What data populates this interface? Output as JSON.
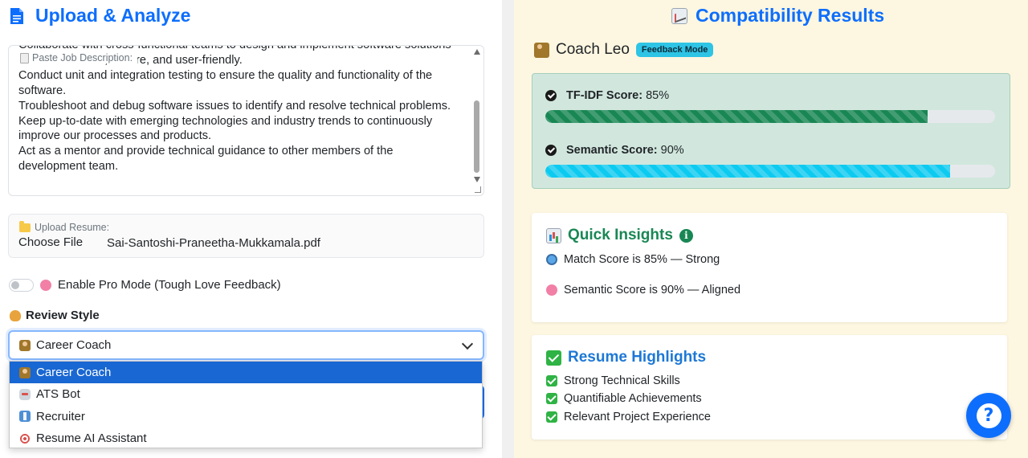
{
  "left_panel": {
    "title": "Upload & Analyze",
    "job_description": {
      "label": "Paste Job Description:",
      "text": "Collaborate with cross-functional teams to design and implement software solutions that are scalable, secure, and user-friendly.\n Conduct unit and integration testing to ensure the quality and functionality of the software.\n Troubleshoot and debug software issues to identify and resolve technical problems.\n Keep up-to-date with emerging technologies and industry trends to continuously improve our processes and products.\n Act as a mentor and provide technical guidance to other members of the development team."
    },
    "resume_upload": {
      "label": "Upload Resume:",
      "button_label": "Choose File",
      "file_name": "Sai-Santoshi-Praneetha-Mukkamala.pdf"
    },
    "pro_mode": {
      "label": "Enable Pro Mode (Tough Love Feedback)",
      "enabled": false
    },
    "review_style": {
      "label": "Review Style",
      "selected": "Career Coach",
      "options": [
        {
          "label": "Career Coach",
          "icon": "coach-icon",
          "selected": true
        },
        {
          "label": "ATS Bot",
          "icon": "robot-icon",
          "selected": false
        },
        {
          "label": "Recruiter",
          "icon": "recruiter-icon",
          "selected": false
        },
        {
          "label": "Resume AI Assistant",
          "icon": "target-icon",
          "selected": false
        }
      ]
    }
  },
  "right_panel": {
    "title": "Compatibility Results",
    "coach": {
      "name": "Coach Leo",
      "badge": "Feedback Mode"
    },
    "scores": {
      "tfidf": {
        "label": "TF-IDF Score:",
        "value_text": "85%",
        "value": 85
      },
      "semantic": {
        "label": "Semantic Score:",
        "value_text": "90%",
        "value": 90
      }
    },
    "quick_insights": {
      "title": "Quick Insights",
      "items": [
        "Match Score is 85% — Strong",
        "Semantic Score is 90% — Aligned"
      ]
    },
    "resume_highlights": {
      "title": "Resume Highlights",
      "items": [
        "Strong Technical Skills",
        "Quantifiable Achievements",
        "Relevant Project Experience"
      ]
    },
    "help_button": {
      "label": "?"
    }
  },
  "colors": {
    "primary": "#0d6efd",
    "success": "#198754",
    "info": "#0dcaf0",
    "right_bg": "#fdf6e0",
    "score_box_bg": "#d1e7dd",
    "dropdown_selected": "#1967d2"
  }
}
